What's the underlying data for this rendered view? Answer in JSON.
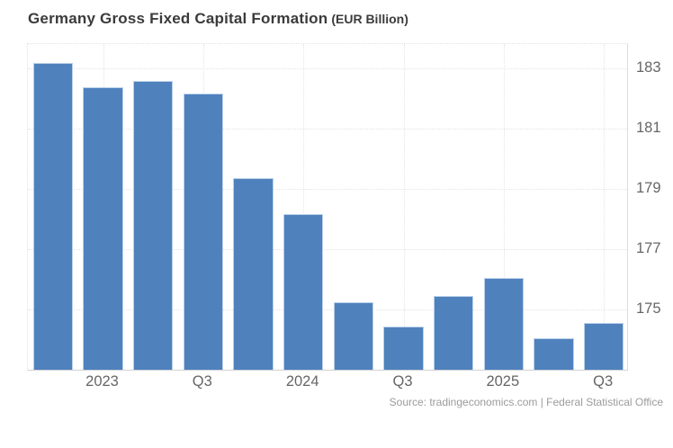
{
  "header": {
    "title": "Germany Gross Fixed Capital Formation",
    "subtitle": "(EUR Billion)"
  },
  "source_line": "Source: tradingeconomics.com | Federal Statistical Office",
  "colors": {
    "bar": "#4f81bd",
    "grid": "#e4e4e4",
    "axis_text": "#666666",
    "title_text": "#3b3b3b",
    "source_text": "#9b9b9b"
  },
  "chart_data": {
    "type": "bar",
    "title": "Germany Gross Fixed Capital Formation",
    "ylabel": "EUR Billion",
    "values": [
      183.1,
      182.3,
      182.5,
      182.1,
      179.3,
      178.1,
      175.2,
      174.4,
      175.4,
      176.0,
      174.0,
      174.5
    ],
    "x_tick_labels": [
      {
        "bar_index": 1,
        "label": "2023"
      },
      {
        "bar_index": 3,
        "label": "Q3"
      },
      {
        "bar_index": 5,
        "label": "2024"
      },
      {
        "bar_index": 7,
        "label": "Q3"
      },
      {
        "bar_index": 9,
        "label": "2025"
      },
      {
        "bar_index": 11,
        "label": "Q3"
      }
    ],
    "y_ticks": [
      183,
      181,
      179,
      177,
      175
    ],
    "ylim": [
      172.96,
      183.79
    ],
    "grid": "dotted",
    "legend": "none",
    "bar_color": "#4f81bd"
  }
}
